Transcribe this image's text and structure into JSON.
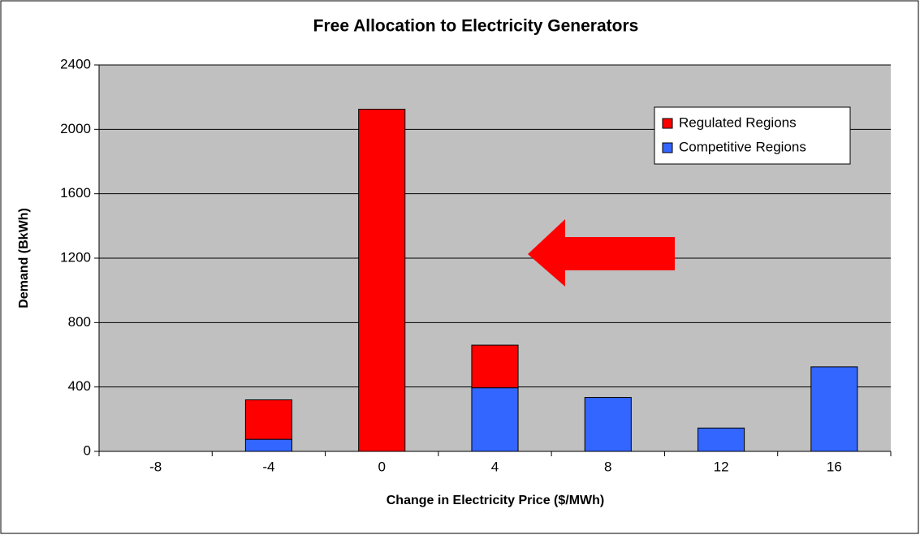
{
  "chart_data": {
    "type": "stacked-bar",
    "title": "Free Allocation to Electricity Generators",
    "x_label": "Change in Electricity Price ($/MWh)",
    "y_label": "Demand (BkWh)",
    "categories": [
      "-8",
      "-4",
      "0",
      "4",
      "8",
      "12",
      "16"
    ],
    "series": [
      {
        "name": "Competitive Regions",
        "color": "#3366ff",
        "values": [
          0,
          75,
          0,
          395,
          335,
          145,
          525
        ]
      },
      {
        "name": "Regulated Regions",
        "color": "#ff0000",
        "values": [
          0,
          245,
          2125,
          265,
          0,
          0,
          0
        ]
      }
    ],
    "ylim": [
      0,
      2400
    ],
    "yticks": [
      0,
      400,
      800,
      1200,
      1600,
      2000,
      2400
    ],
    "grid": true,
    "legend": "upper right"
  }
}
